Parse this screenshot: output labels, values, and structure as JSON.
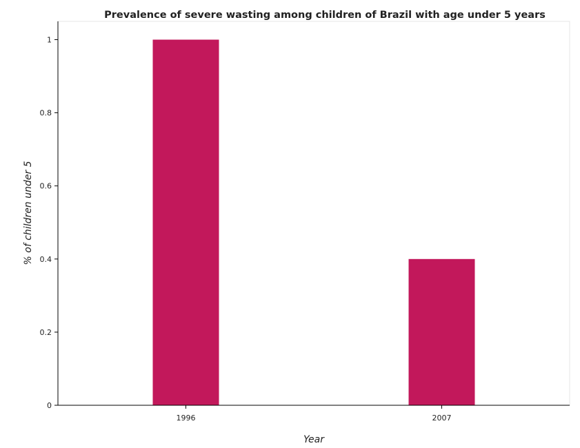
{
  "chart_data": {
    "type": "bar",
    "title": "Prevalence of severe wasting among children of Brazil with age under 5 years",
    "xlabel": "Year",
    "ylabel": "% of children under 5",
    "categories": [
      "1996",
      "2007"
    ],
    "values": [
      1.0,
      0.4
    ],
    "ylim": [
      0,
      1.05
    ],
    "yticks": [
      0,
      0.2,
      0.4,
      0.6,
      0.8,
      1
    ],
    "ytick_labels": [
      "0",
      "0.2",
      "0.4",
      "0.6",
      "0.8",
      "1"
    ],
    "bar_color": "#c2185b",
    "grid": false,
    "legend": "none"
  }
}
